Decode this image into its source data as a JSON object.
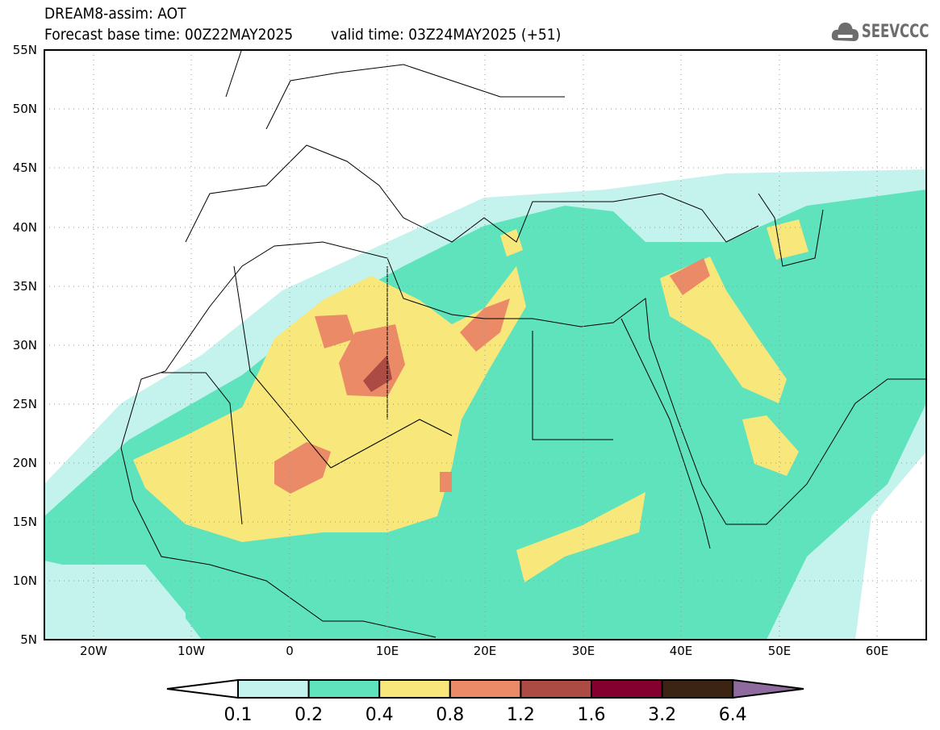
{
  "header": {
    "line1": "DREAM8-assim: AOT",
    "base_time": "Forecast base time: 00Z22MAY2025",
    "valid_time": "valid time: 03Z24MAY2025 (+51)"
  },
  "logo": {
    "text": "SEEVCCC",
    "icon": "cloud-icon"
  },
  "map": {
    "lat_labels": [
      "55N",
      "50N",
      "45N",
      "40N",
      "35N",
      "30N",
      "25N",
      "20N",
      "15N",
      "10N",
      "5N"
    ],
    "lon_labels": [
      "20W",
      "10W",
      "0",
      "10E",
      "20E",
      "30E",
      "40E",
      "50E",
      "60E"
    ]
  },
  "colorbar": {
    "labels": [
      "0.1",
      "0.2",
      "0.4",
      "0.8",
      "1.2",
      "1.6",
      "3.2",
      "6.4"
    ],
    "colors": [
      "#ffffff",
      "#c4f2ec",
      "#5ee3bd",
      "#f8e77a",
      "#ea8a67",
      "#ab4b44",
      "#84002e",
      "#3b2414",
      "#8e6a9e"
    ]
  }
}
